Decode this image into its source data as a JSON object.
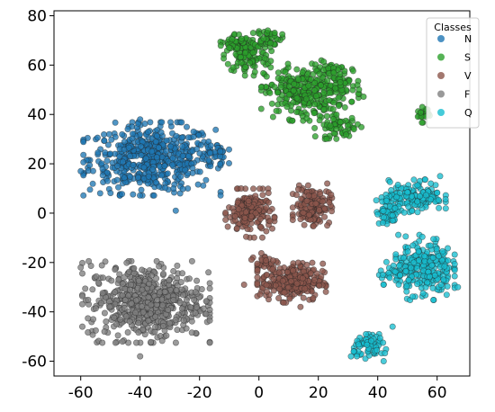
{
  "chart_data": {
    "type": "scatter",
    "title": "",
    "xlabel": "",
    "ylabel": "",
    "xlim": [
      -69,
      71
    ],
    "ylim": [
      -66,
      82
    ],
    "x_ticks": [
      -60,
      -40,
      -20,
      0,
      20,
      40,
      60
    ],
    "y_ticks": [
      -60,
      -40,
      -20,
      0,
      20,
      40,
      60,
      80
    ],
    "grid": false,
    "legend": {
      "title": "Classes",
      "placement": "top-right",
      "entries": [
        "N",
        "S",
        "V",
        "F",
        "Q"
      ]
    },
    "series": [
      {
        "name": "N",
        "color": "#1f77b4",
        "clusters": [
          {
            "center": [
              -36,
              22
            ],
            "spread": [
              14,
              9
            ],
            "count": 520
          },
          {
            "center": [
              -15,
              24
            ],
            "spread": [
              3,
              3
            ],
            "count": 30
          }
        ],
        "points": [
          [
            -40,
            38
          ],
          [
            -22,
            33
          ],
          [
            -60,
            17
          ],
          [
            -28,
            1
          ],
          [
            -13,
            25
          ]
        ]
      },
      {
        "name": "S",
        "color": "#2ca02c",
        "clusters": [
          {
            "center": [
              -4,
              64
            ],
            "spread": [
              5,
              5
            ],
            "count": 110
          },
          {
            "center": [
              -8,
              69
            ],
            "spread": [
              3,
              2.5
            ],
            "count": 40
          },
          {
            "center": [
              3,
              71
            ],
            "spread": [
              3,
              2.5
            ],
            "count": 45
          },
          {
            "center": [
              14,
              49
            ],
            "spread": [
              8,
              7
            ],
            "count": 260
          },
          {
            "center": [
              27,
              52
            ],
            "spread": [
              5,
              6
            ],
            "count": 90
          },
          {
            "center": [
              27,
              35
            ],
            "spread": [
              5,
              3
            ],
            "count": 60
          },
          {
            "center": [
              55,
              40
            ],
            "spread": [
              1.5,
              2
            ],
            "count": 22
          }
        ],
        "points": [
          [
            3,
            74
          ],
          [
            -10,
            67
          ],
          [
            32,
            34
          ],
          [
            55,
            43
          ]
        ]
      },
      {
        "name": "V",
        "color": "#8c564b",
        "clusters": [
          {
            "center": [
              -3,
              0
            ],
            "spread": [
              5,
              6
            ],
            "count": 170
          },
          {
            "center": [
              18,
              3
            ],
            "spread": [
              4,
              5
            ],
            "count": 140
          },
          {
            "center": [
              11,
              -28
            ],
            "spread": [
              7,
              5
            ],
            "count": 240
          },
          {
            "center": [
              2,
              -20
            ],
            "spread": [
              3,
              3
            ],
            "count": 30
          }
        ],
        "points": [
          [
            -6,
            10
          ],
          [
            23,
            12
          ],
          [
            14,
            -38
          ],
          [
            -5,
            -29
          ]
        ]
      },
      {
        "name": "F",
        "color": "#7f7f7f",
        "clusters": [
          {
            "center": [
              -38,
              -36
            ],
            "spread": [
              13,
              10
            ],
            "count": 560
          }
        ],
        "points": [
          [
            -60,
            -22
          ],
          [
            -52,
            -48
          ],
          [
            -17,
            -24
          ],
          [
            -40,
            -58
          ]
        ]
      },
      {
        "name": "Q",
        "color": "#17becf",
        "clusters": [
          {
            "center": [
              53,
              7
            ],
            "spread": [
              6,
              4
            ],
            "count": 140
          },
          {
            "center": [
              44,
              1
            ],
            "spread": [
              3,
              4
            ],
            "count": 60
          },
          {
            "center": [
              56,
              -22
            ],
            "spread": [
              6,
              8
            ],
            "count": 230
          },
          {
            "center": [
              46,
              -24
            ],
            "spread": [
              4,
              3
            ],
            "count": 40
          },
          {
            "center": [
              38,
              -54
            ],
            "spread": [
              4,
              3
            ],
            "count": 70
          }
        ],
        "points": [
          [
            31,
            -58
          ],
          [
            45,
            -46
          ],
          [
            67,
            -30
          ],
          [
            61,
            15
          ],
          [
            42,
            -60
          ]
        ]
      }
    ]
  }
}
